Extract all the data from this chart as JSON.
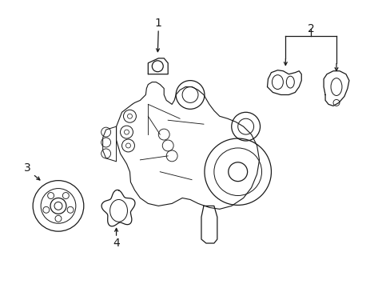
{
  "bg_color": "#ffffff",
  "line_color": "#1a1a1a",
  "line_width": 0.9,
  "label_fontsize": 9,
  "figsize": [
    4.89,
    3.6
  ],
  "dpi": 100
}
